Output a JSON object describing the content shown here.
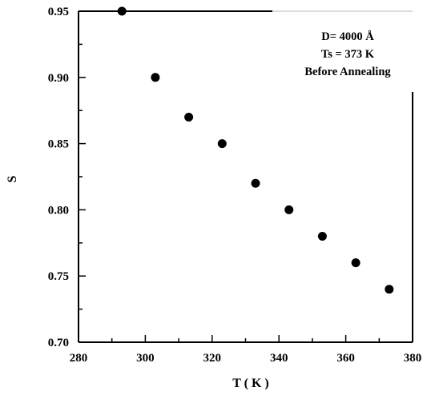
{
  "chart_data": {
    "type": "scatter",
    "xlabel": "T ( K )",
    "ylabel": "S",
    "xlim": [
      280,
      380
    ],
    "ylim": [
      0.7,
      0.95
    ],
    "x_ticks": [
      "280",
      "300",
      "320",
      "340",
      "360",
      "380"
    ],
    "y_ticks": [
      "0.70",
      "0.75",
      "0.80",
      "0.85",
      "0.90",
      "0.95"
    ],
    "annotations": [
      "D= 4000 Å",
      "Ts = 373  K",
      "Before Annealing"
    ],
    "grid": false,
    "marker_color": "#000000",
    "series": [
      {
        "x": [
          293,
          303,
          313,
          323,
          333,
          343,
          353,
          363,
          373
        ],
        "y": [
          0.95,
          0.9,
          0.87,
          0.85,
          0.82,
          0.8,
          0.78,
          0.76,
          0.74
        ]
      }
    ]
  }
}
